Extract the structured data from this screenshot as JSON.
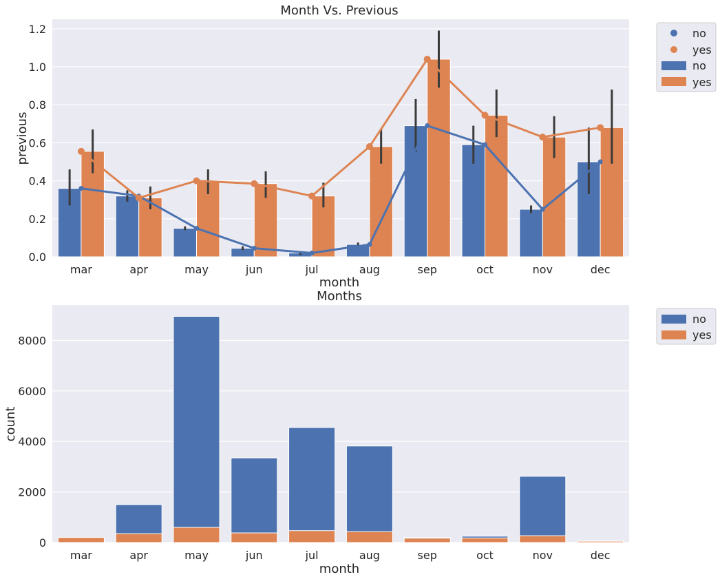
{
  "colors": {
    "no": "#4c72b0",
    "yes": "#dd8452",
    "errbar": "#3b3b3b",
    "plot_bg": "#eaeaf2",
    "grid": "#ffffff"
  },
  "chart_data": [
    {
      "type": "bar",
      "title": "Month Vs. Previous",
      "xlabel": "month",
      "ylabel": "previous",
      "categories": [
        "mar",
        "apr",
        "may",
        "jun",
        "jul",
        "aug",
        "sep",
        "oct",
        "nov",
        "dec"
      ],
      "ylim": [
        0,
        1.25
      ],
      "yticks": [
        0.0,
        0.2,
        0.4,
        0.6,
        0.8,
        1.0,
        1.2
      ],
      "ytick_labels": [
        "0.0",
        "0.2",
        "0.4",
        "0.6",
        "0.8",
        "1.0",
        "1.2"
      ],
      "grid": true,
      "legend_position": "outside-top-right",
      "legend": [
        "no",
        "yes",
        "no",
        "yes"
      ],
      "series": [
        {
          "name": "no",
          "values": [
            0.36,
            0.32,
            0.15,
            0.045,
            0.02,
            0.065,
            0.69,
            0.59,
            0.25,
            0.5
          ],
          "ci_low": [
            0.27,
            0.29,
            0.14,
            0.035,
            0.01,
            0.055,
            0.55,
            0.49,
            0.23,
            0.33
          ],
          "ci_high": [
            0.46,
            0.35,
            0.16,
            0.055,
            0.03,
            0.075,
            0.83,
            0.69,
            0.27,
            0.68
          ]
        },
        {
          "name": "yes",
          "values": [
            0.555,
            0.31,
            0.4,
            0.385,
            0.32,
            0.58,
            1.04,
            0.745,
            0.63,
            0.68
          ],
          "ci_low": [
            0.44,
            0.25,
            0.33,
            0.31,
            0.26,
            0.49,
            0.89,
            0.63,
            0.52,
            0.49
          ],
          "ci_high": [
            0.67,
            0.37,
            0.46,
            0.45,
            0.39,
            0.67,
            1.19,
            0.88,
            0.74,
            0.88
          ]
        }
      ],
      "point_series": [
        {
          "name": "no",
          "values": [
            0.36,
            0.32,
            0.15,
            0.045,
            0.02,
            0.065,
            0.69,
            0.59,
            0.25,
            0.5
          ]
        },
        {
          "name": "yes",
          "values": [
            0.555,
            0.31,
            0.4,
            0.385,
            0.32,
            0.58,
            1.04,
            0.745,
            0.63,
            0.68
          ]
        }
      ]
    },
    {
      "type": "bar",
      "title": "Months",
      "xlabel": "month",
      "ylabel": "count",
      "categories": [
        "mar",
        "apr",
        "may",
        "jun",
        "jul",
        "aug",
        "sep",
        "oct",
        "nov",
        "dec"
      ],
      "ylim": [
        0,
        9400
      ],
      "yticks": [
        0,
        2000,
        4000,
        6000,
        8000
      ],
      "ytick_labels": [
        "0",
        "2000",
        "4000",
        "6000",
        "8000"
      ],
      "grid": true,
      "overlaid": true,
      "legend_position": "outside-top-right",
      "legend": [
        "no",
        "yes"
      ],
      "series": [
        {
          "name": "no",
          "values": [
            200,
            1500,
            8950,
            3350,
            4550,
            3820,
            200,
            250,
            2620,
            60
          ]
        },
        {
          "name": "yes",
          "values": [
            200,
            350,
            600,
            380,
            470,
            430,
            170,
            180,
            270,
            50
          ]
        }
      ]
    }
  ]
}
